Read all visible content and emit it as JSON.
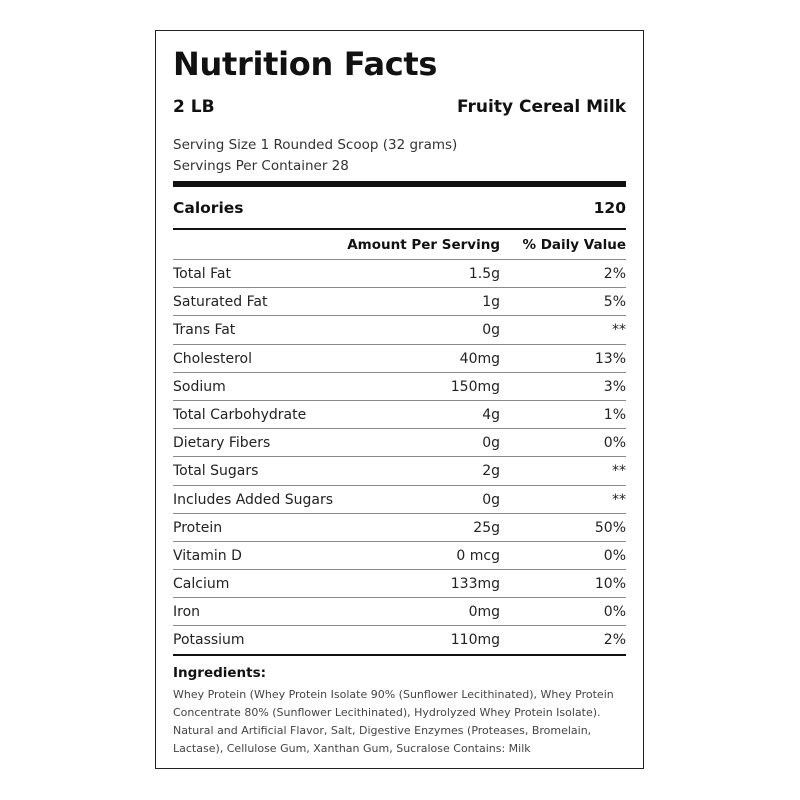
{
  "label": {
    "title": "Nutrition Facts",
    "size": "2 LB",
    "flavor": "Fruity Cereal Milk",
    "serving_size": "Serving Size 1 Rounded Scoop (32 grams)",
    "servings_per_container": "Servings Per Container 28",
    "calories_label": "Calories",
    "calories_value": "120",
    "header_amount": "Amount Per Serving",
    "header_dv": "% Daily Value",
    "nutrients": [
      {
        "name": "Total Fat",
        "amount": "1.5g",
        "dv": "2%"
      },
      {
        "name": "Saturated Fat",
        "amount": "1g",
        "dv": "5%"
      },
      {
        "name": "Trans Fat",
        "amount": "0g",
        "dv": "**"
      },
      {
        "name": "Cholesterol",
        "amount": "40mg",
        "dv": "13%"
      },
      {
        "name": "Sodium",
        "amount": "150mg",
        "dv": "3%"
      },
      {
        "name": "Total Carbohydrate",
        "amount": "4g",
        "dv": "1%"
      },
      {
        "name": "Dietary Fibers",
        "amount": "0g",
        "dv": "0%"
      },
      {
        "name": "Total Sugars",
        "amount": "2g",
        "dv": "**"
      },
      {
        "name": "Includes Added Sugars",
        "amount": "0g",
        "dv": "**"
      },
      {
        "name": "Protein",
        "amount": "25g",
        "dv": "50%"
      },
      {
        "name": "Vitamin D",
        "amount": "0 mcg",
        "dv": "0%"
      },
      {
        "name": "Calcium",
        "amount": "133mg",
        "dv": "10%"
      },
      {
        "name": "Iron",
        "amount": "0mg",
        "dv": "0%"
      },
      {
        "name": "Potassium",
        "amount": "110mg",
        "dv": "2%"
      }
    ],
    "ingredients_title": "Ingredients:",
    "ingredients_text": "Whey Protein (Whey Protein Isolate 90% (Sunflower Lecithinated), Whey Protein Concentrate 80% (Sunflower Lecithinated), Hydrolyzed Whey Protein Isolate). Natural and Artificial Flavor, Salt, Digestive Enzymes (Proteases, Bromelain, Lactase), Cellulose Gum, Xanthan Gum, Sucralose Contains: Milk"
  }
}
